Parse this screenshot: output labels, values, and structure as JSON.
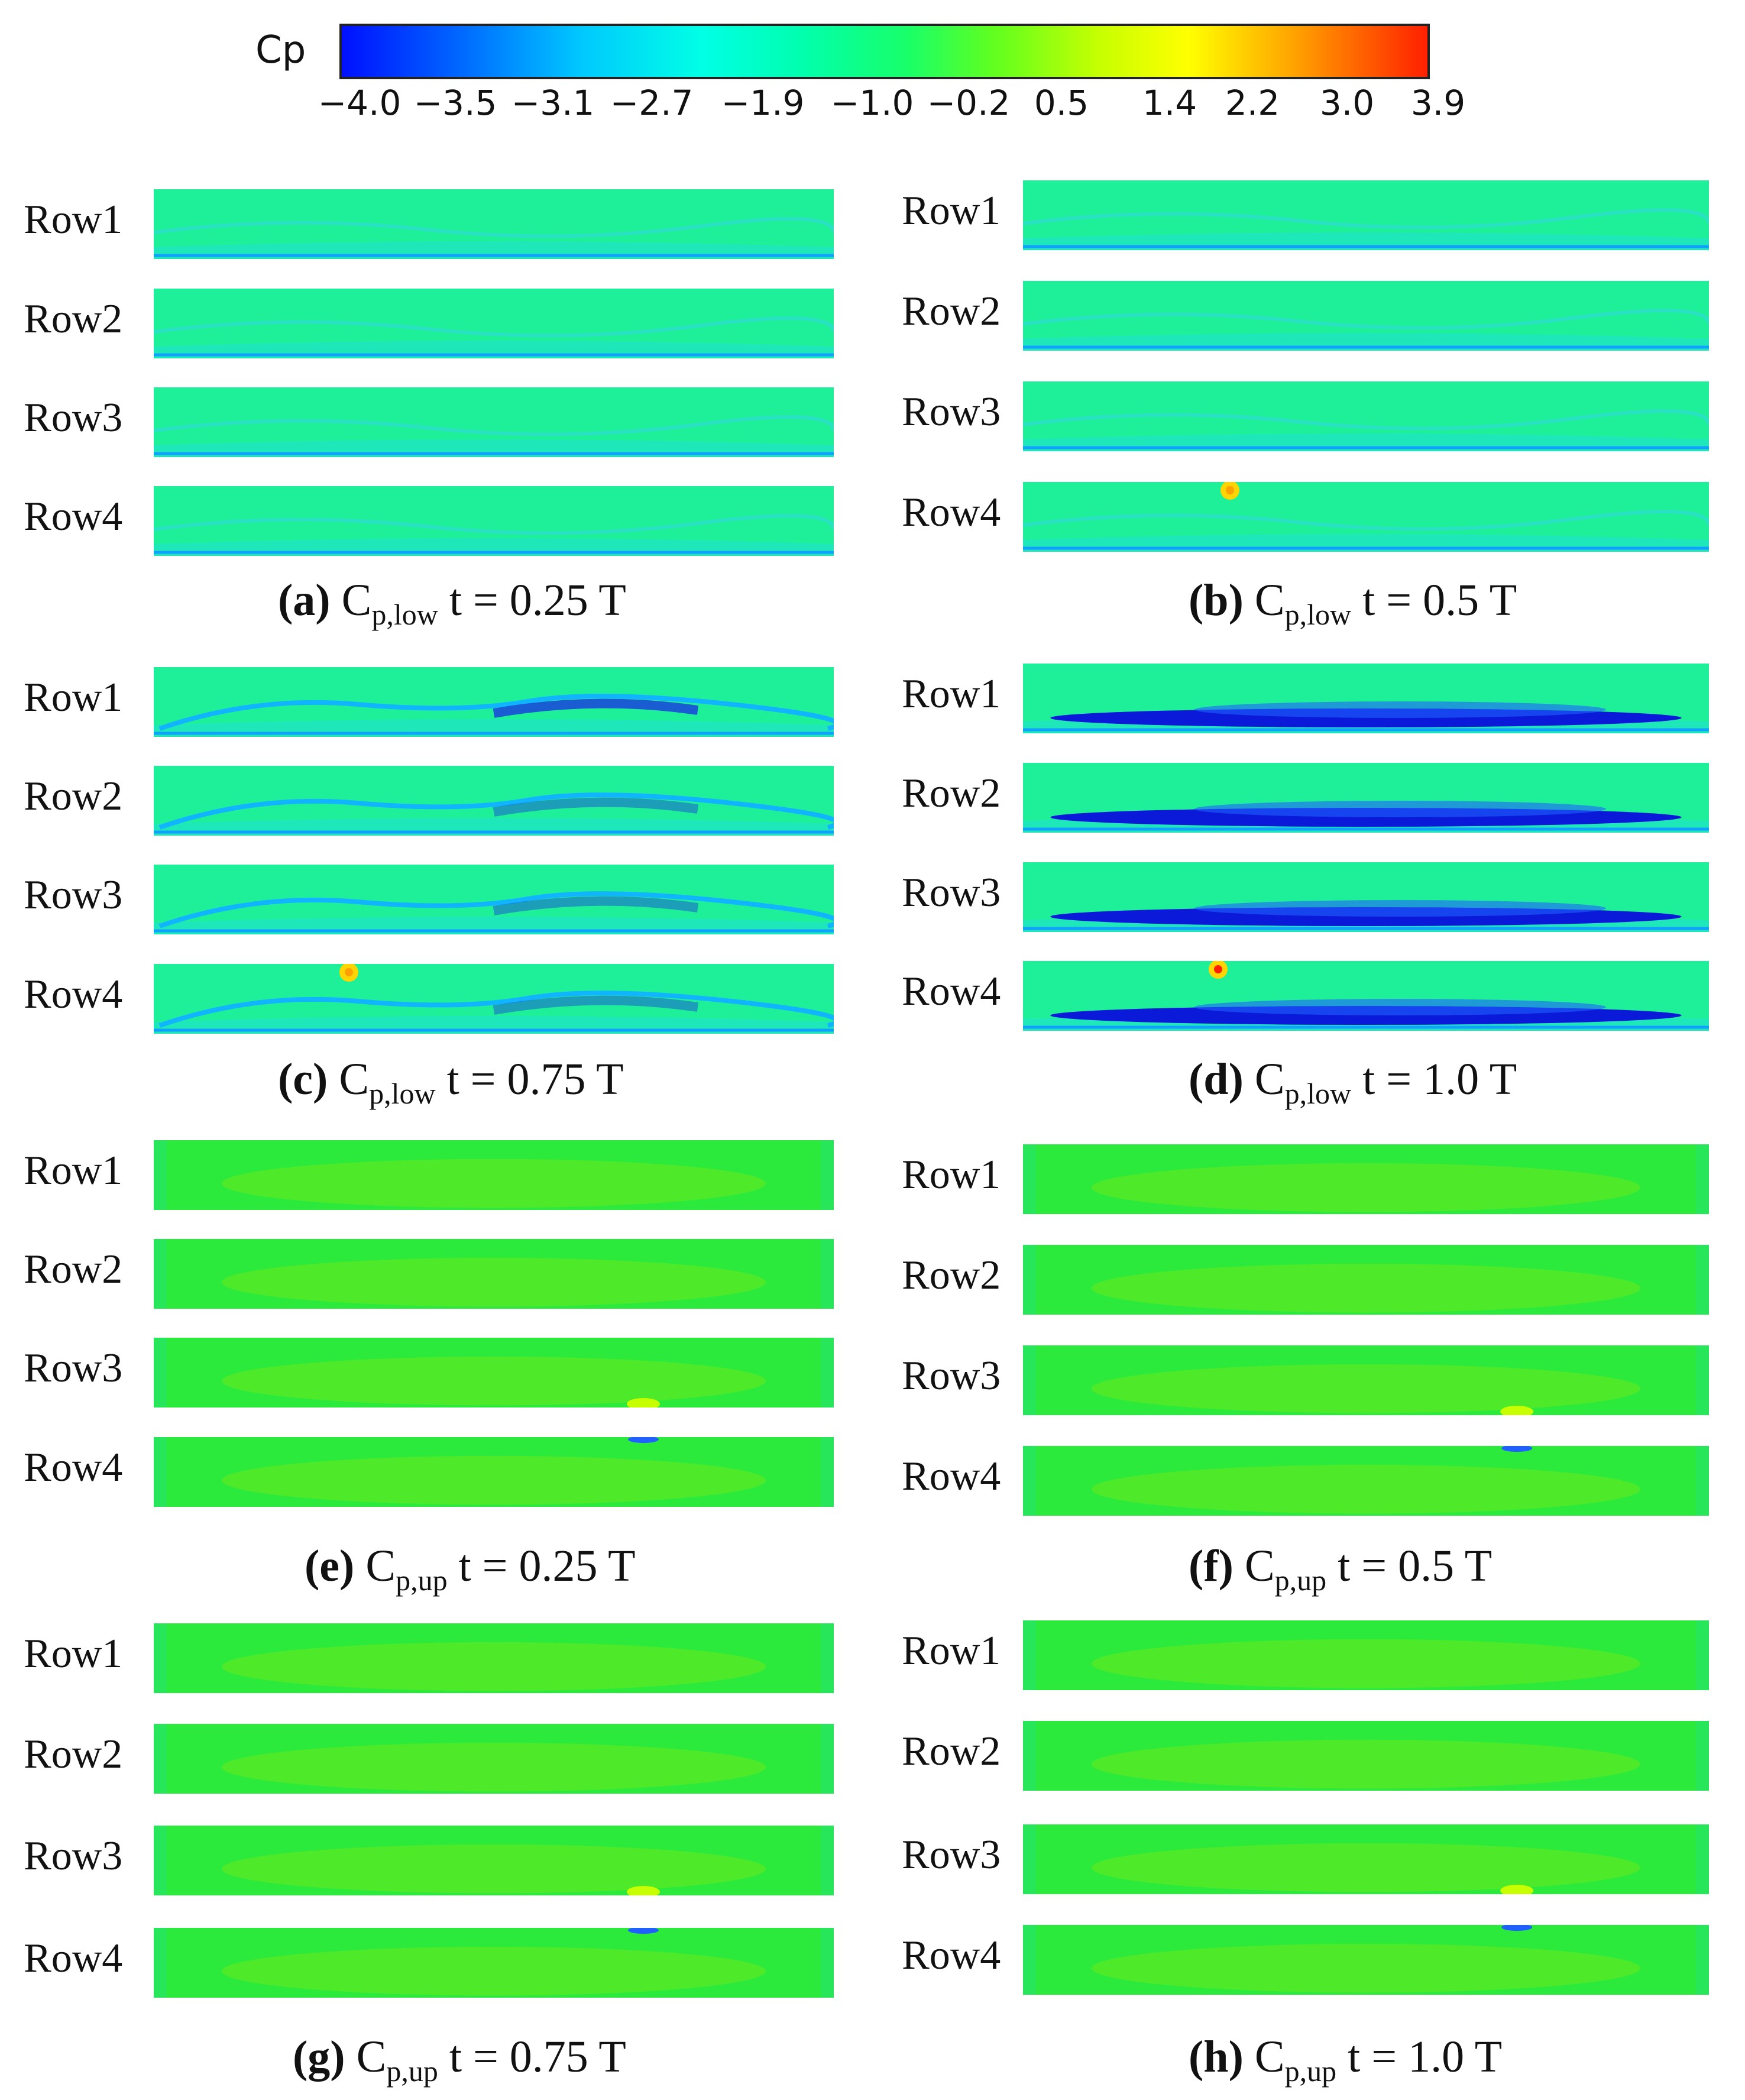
{
  "colorbar": {
    "title": "Cp",
    "ticks": [
      "−4.0",
      "−3.5",
      "−3.1",
      "−2.7",
      "−1.9",
      "−1.0",
      "−0.2",
      "0.5",
      "1.4",
      "2.2",
      "3.0",
      "3.9"
    ],
    "colors": [
      "#0010ff",
      "#00c8ff",
      "#00ffe6",
      "#18ff6a",
      "#c8ff00",
      "#ffff00",
      "#ffa000",
      "#ff2000"
    ]
  },
  "panels": [
    {
      "letter": "(a)",
      "symbol": "C",
      "subscript": "p,low",
      "time": " t = 0.25 T",
      "rows": [
        "Row1",
        "Row2",
        "Row3",
        "Row4"
      ],
      "field": "low-mild"
    },
    {
      "letter": "(b)",
      "symbol": "C",
      "subscript": "p,low",
      "time": " t = 0.5 T",
      "rows": [
        "Row1",
        "Row2",
        "Row3",
        "Row4"
      ],
      "field": "low-mild"
    },
    {
      "letter": "(c)",
      "symbol": "C",
      "subscript": "p,low",
      "time": " t = 0.75 T",
      "rows": [
        "Row1",
        "Row2",
        "Row3",
        "Row4"
      ],
      "field": "low-medium"
    },
    {
      "letter": "(d)",
      "symbol": "C",
      "subscript": "p,low",
      "time": " t = 1.0 T",
      "rows": [
        "Row1",
        "Row2",
        "Row3",
        "Row4"
      ],
      "field": "low-strong"
    },
    {
      "letter": "(e)",
      "symbol": "C",
      "subscript": "p,up",
      "time": " t = 0.25 T",
      "rows": [
        "Row1",
        "Row2",
        "Row3",
        "Row4"
      ],
      "field": "up"
    },
    {
      "letter": "(f)",
      "symbol": "C",
      "subscript": "p,up",
      "time": " t = 0.5 T",
      "rows": [
        "Row1",
        "Row2",
        "Row3",
        "Row4"
      ],
      "field": "up"
    },
    {
      "letter": "(g)",
      "symbol": "C",
      "subscript": "p,up",
      "time": " t = 0.75 T",
      "rows": [
        "Row1",
        "Row2",
        "Row3",
        "Row4"
      ],
      "field": "up"
    },
    {
      "letter": "(h)",
      "symbol": "C",
      "subscript": "p,up",
      "time": " t = 1.0 T",
      "rows": [
        "Row1",
        "Row2",
        "Row3",
        "Row4"
      ],
      "field": "up"
    }
  ]
}
